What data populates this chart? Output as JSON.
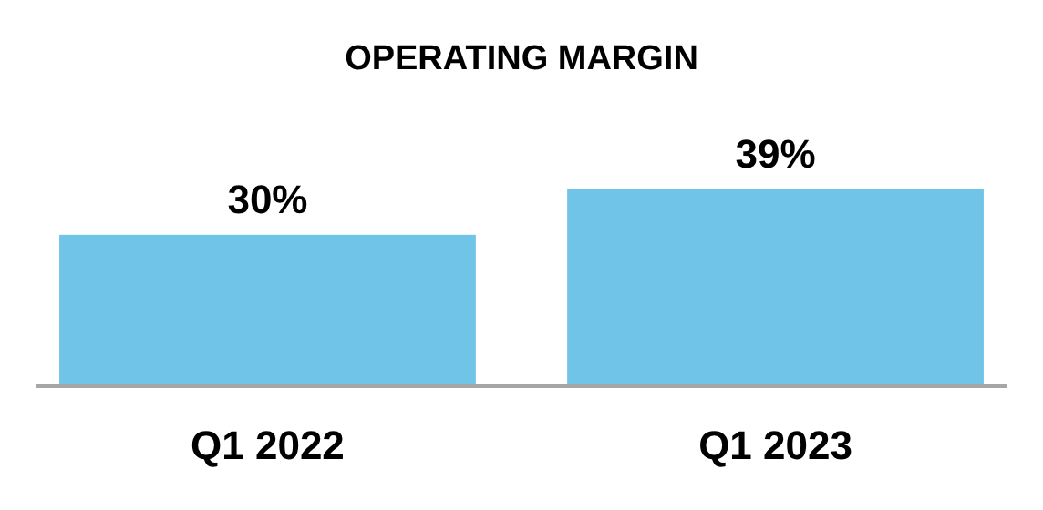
{
  "chart_data": {
    "type": "bar",
    "title": "OPERATING MARGIN",
    "categories": [
      "Q1 2022",
      "Q1 2023"
    ],
    "values": [
      30,
      39
    ],
    "color": "#70c4e8",
    "value_labels": [
      "30%",
      "39%"
    ]
  }
}
